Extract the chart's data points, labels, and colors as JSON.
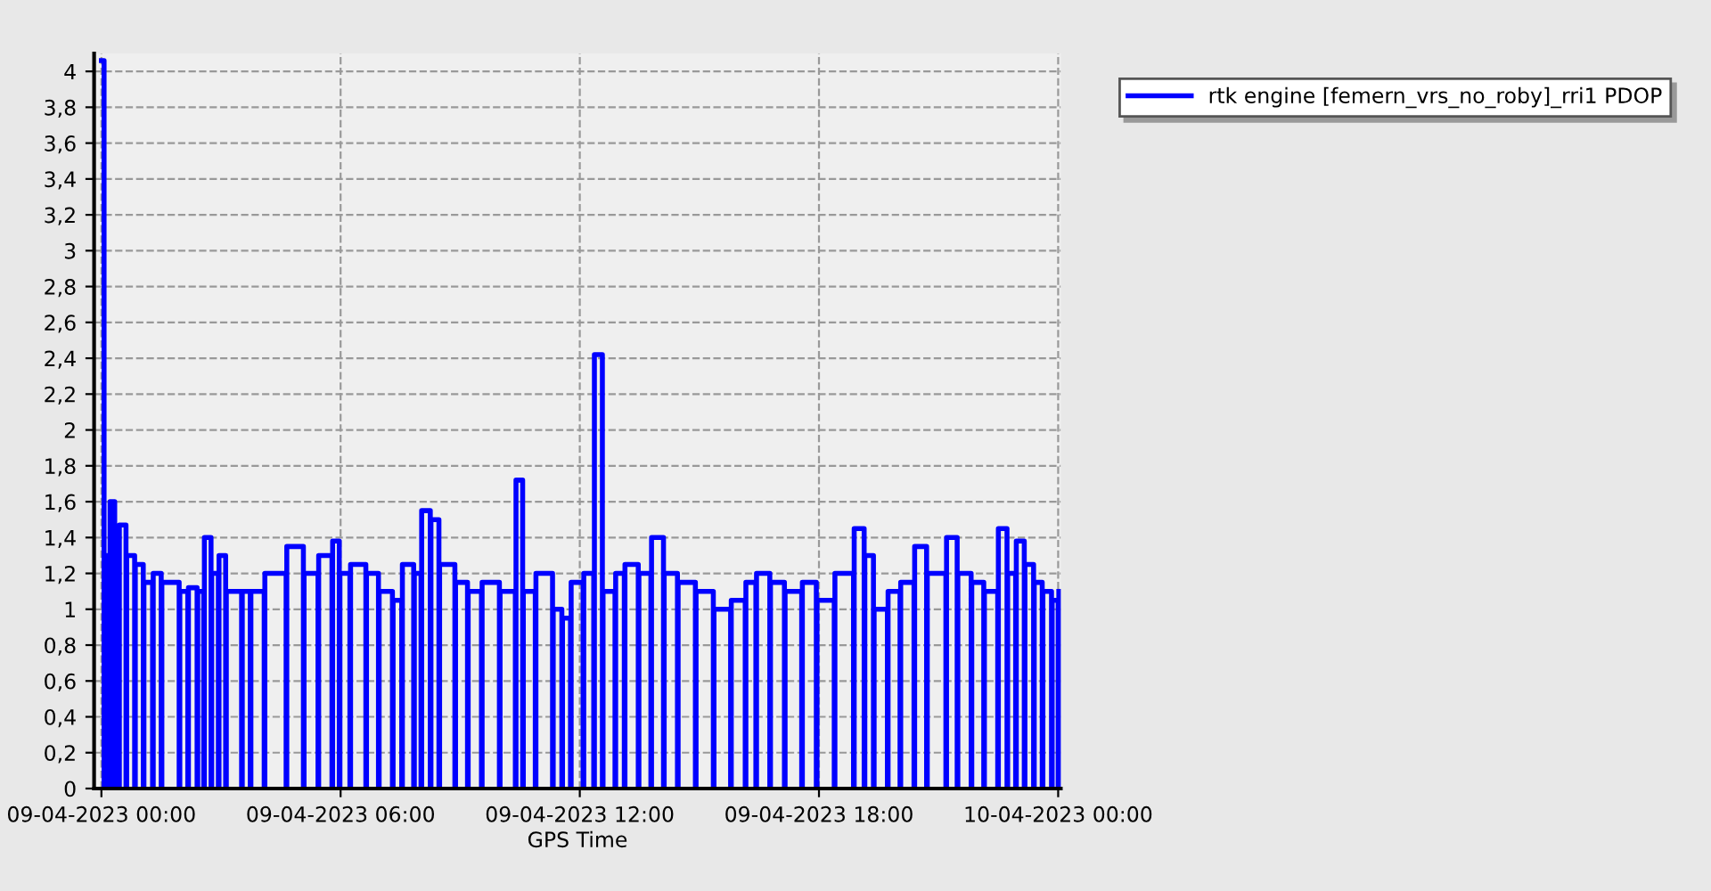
{
  "chart_data": {
    "type": "step",
    "xlabel": "GPS Time",
    "legend": "top right",
    "grid": true,
    "marker": "none",
    "line_style": "solid",
    "xlim": [
      "2023-04-08T23:49",
      "2023-04-10T00:04"
    ],
    "xticks": [
      {
        "value": "2023-04-09T00:00",
        "label": "09-04-2023 00:00"
      },
      {
        "value": "2023-04-09T06:00",
        "label": "09-04-2023 06:00"
      },
      {
        "value": "2023-04-09T12:00",
        "label": "09-04-2023 12:00"
      },
      {
        "value": "2023-04-09T18:00",
        "label": "09-04-2023 18:00"
      },
      {
        "value": "2023-04-10T00:00",
        "label": "10-04-2023 00:00"
      }
    ],
    "ylim": [
      0,
      4.1
    ],
    "yticks": [
      0,
      {
        "value": 0.2,
        "label": "0,2"
      },
      {
        "value": 0.4,
        "label": "0,4"
      },
      {
        "value": 0.6,
        "label": "0,6"
      },
      {
        "value": 0.8,
        "label": "0,8"
      },
      1,
      {
        "value": 1.2,
        "label": "1,2"
      },
      {
        "value": 1.4,
        "label": "1,4"
      },
      {
        "value": 1.6,
        "label": "1,6"
      },
      {
        "value": 1.8,
        "label": "1,8"
      },
      2,
      {
        "value": 2.2,
        "label": "2,2"
      },
      {
        "value": 2.4,
        "label": "2,4"
      },
      {
        "value": 2.6,
        "label": "2,6"
      },
      {
        "value": 2.8,
        "label": "2,8"
      },
      3,
      {
        "value": 3.2,
        "label": "3,2"
      },
      {
        "value": 3.4,
        "label": "3,4"
      },
      {
        "value": 3.6,
        "label": "3,6"
      },
      {
        "value": 3.8,
        "label": "3,8"
      },
      4
    ],
    "series": [
      {
        "name": "rtk engine [femern_vrs_no_roby]_rri1 PDOP",
        "color": "#0000ff",
        "x": [
          "2023-04-09T00:00",
          "2023-04-09T00:04",
          "2023-04-09T00:05",
          "2023-04-09T00:12",
          "2023-04-09T00:13",
          "2023-04-09T00:20",
          "2023-04-09T00:21",
          "2023-04-09T00:26",
          "2023-04-09T00:27",
          "2023-04-09T00:37",
          "2023-04-09T00:38",
          "2023-04-09T00:50",
          "2023-04-09T00:51",
          "2023-04-09T01:03",
          "2023-04-09T01:04",
          "2023-04-09T01:17",
          "2023-04-09T01:18",
          "2023-04-09T01:30",
          "2023-04-09T01:31",
          "2023-04-09T01:57",
          "2023-04-09T01:58",
          "2023-04-09T02:10",
          "2023-04-09T02:11",
          "2023-04-09T02:24",
          "2023-04-09T02:25",
          "2023-04-09T02:34",
          "2023-04-09T02:35",
          "2023-04-09T02:45",
          "2023-04-09T02:46",
          "2023-04-09T02:56",
          "2023-04-09T02:57",
          "2023-04-09T03:07",
          "2023-04-09T03:08",
          "2023-04-09T03:31",
          "2023-04-09T03:32",
          "2023-04-09T03:44",
          "2023-04-09T03:45",
          "2023-04-09T04:05",
          "2023-04-09T04:06",
          "2023-04-09T04:38",
          "2023-04-09T04:39",
          "2023-04-09T05:04",
          "2023-04-09T05:05",
          "2023-04-09T05:26",
          "2023-04-09T05:27",
          "2023-04-09T05:47",
          "2023-04-09T05:48",
          "2023-04-09T05:58",
          "2023-04-09T05:59",
          "2023-04-09T06:14",
          "2023-04-09T06:15",
          "2023-04-09T06:38",
          "2023-04-09T06:39",
          "2023-04-09T06:57",
          "2023-04-09T06:58",
          "2023-04-09T07:18",
          "2023-04-09T07:19",
          "2023-04-09T07:32",
          "2023-04-09T07:33",
          "2023-04-09T07:50",
          "2023-04-09T07:51",
          "2023-04-09T08:01",
          "2023-04-09T08:02",
          "2023-04-09T08:15",
          "2023-04-09T08:16",
          "2023-04-09T08:28",
          "2023-04-09T08:29",
          "2023-04-09T08:52",
          "2023-04-09T08:53",
          "2023-04-09T09:11",
          "2023-04-09T09:12",
          "2023-04-09T09:32",
          "2023-04-09T09:33",
          "2023-04-09T09:59",
          "2023-04-09T10:00",
          "2023-04-09T10:23",
          "2023-04-09T10:24",
          "2023-04-09T10:34",
          "2023-04-09T10:35",
          "2023-04-09T10:53",
          "2023-04-09T10:54",
          "2023-04-09T11:19",
          "2023-04-09T11:20",
          "2023-04-09T11:33",
          "2023-04-09T11:34",
          "2023-04-09T11:46",
          "2023-04-09T11:47",
          "2023-04-09T12:05",
          "2023-04-09T12:06",
          "2023-04-09T12:21",
          "2023-04-09T12:22",
          "2023-04-09T12:34",
          "2023-04-09T12:35",
          "2023-04-09T12:53",
          "2023-04-09T12:54",
          "2023-04-09T13:07",
          "2023-04-09T13:08",
          "2023-04-09T13:28",
          "2023-04-09T13:29",
          "2023-04-09T13:47",
          "2023-04-09T13:48",
          "2023-04-09T14:06",
          "2023-04-09T14:07",
          "2023-04-09T14:27",
          "2023-04-09T14:28",
          "2023-04-09T14:54",
          "2023-04-09T14:55",
          "2023-04-09T15:21",
          "2023-04-09T15:22",
          "2023-04-09T15:47",
          "2023-04-09T15:48",
          "2023-04-09T16:09",
          "2023-04-09T16:10",
          "2023-04-09T16:25",
          "2023-04-09T16:26",
          "2023-04-09T16:46",
          "2023-04-09T16:47",
          "2023-04-09T17:08",
          "2023-04-09T17:09",
          "2023-04-09T17:34",
          "2023-04-09T17:35",
          "2023-04-09T17:56",
          "2023-04-09T17:57",
          "2023-04-09T18:23",
          "2023-04-09T18:24",
          "2023-04-09T18:52",
          "2023-04-09T18:53",
          "2023-04-09T19:08",
          "2023-04-09T19:09",
          "2023-04-09T19:22",
          "2023-04-09T19:23",
          "2023-04-09T19:43",
          "2023-04-09T19:44",
          "2023-04-09T20:02",
          "2023-04-09T20:03",
          "2023-04-09T20:23",
          "2023-04-09T20:24",
          "2023-04-09T20:42",
          "2023-04-09T20:43",
          "2023-04-09T21:11",
          "2023-04-09T21:12",
          "2023-04-09T21:28",
          "2023-04-09T21:29",
          "2023-04-09T21:49",
          "2023-04-09T21:50",
          "2023-04-09T22:08",
          "2023-04-09T22:09",
          "2023-04-09T22:29",
          "2023-04-09T22:30",
          "2023-04-09T22:43",
          "2023-04-09T22:44",
          "2023-04-09T22:56",
          "2023-04-09T22:57",
          "2023-04-09T23:09",
          "2023-04-09T23:10",
          "2023-04-09T23:23",
          "2023-04-09T23:24",
          "2023-04-09T23:36",
          "2023-04-09T23:37",
          "2023-04-09T23:50",
          "2023-04-09T23:51",
          "2023-04-10T00:00",
          "2023-04-10T00:01"
        ],
        "values": [
          4.06,
          0,
          1.3,
          0,
          1.6,
          0,
          1.45,
          0,
          1.47,
          0,
          1.3,
          0,
          1.25,
          0,
          1.15,
          0,
          1.2,
          0,
          1.15,
          0,
          1.1,
          0,
          1.12,
          0,
          1.1,
          0,
          1.4,
          0,
          1.2,
          0,
          1.3,
          0,
          1.1,
          0,
          1.1,
          0,
          1.1,
          0,
          1.2,
          0,
          1.35,
          0,
          1.2,
          0,
          1.3,
          0,
          1.38,
          0,
          1.2,
          0,
          1.25,
          0,
          1.2,
          0,
          1.1,
          0,
          1.05,
          0,
          1.25,
          0,
          1.2,
          0,
          1.55,
          0,
          1.5,
          0,
          1.25,
          0,
          1.15,
          0,
          1.1,
          0,
          1.15,
          0,
          1.1,
          0,
          1.72,
          0,
          1.1,
          0,
          1.2,
          0,
          1.0,
          0,
          0.95,
          0,
          1.15,
          0,
          1.2,
          0,
          2.42,
          0,
          1.1,
          0,
          1.2,
          0,
          1.25,
          0,
          1.2,
          0,
          1.4,
          0,
          1.2,
          0,
          1.15,
          0,
          1.1,
          0,
          1.0,
          0,
          1.05,
          0,
          1.15,
          0,
          1.2,
          0,
          1.15,
          0,
          1.1,
          0,
          1.15,
          0,
          1.05,
          0,
          1.2,
          0,
          1.45,
          0,
          1.3,
          0,
          1.0,
          0,
          1.1,
          0,
          1.15,
          0,
          1.35,
          0,
          1.2,
          0,
          1.4,
          0,
          1.2,
          0,
          1.15,
          0,
          1.1,
          0,
          1.45,
          0,
          1.2,
          0,
          1.38,
          0,
          1.25,
          0,
          1.15,
          0,
          1.1,
          0,
          1.05,
          0,
          1.1
        ]
      }
    ]
  }
}
